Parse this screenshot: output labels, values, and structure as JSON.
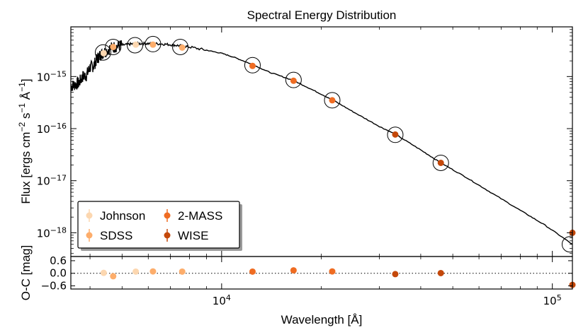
{
  "chart_data": [
    {
      "type": "scatter",
      "panel": "sed",
      "title": "Spectral Energy Distribution",
      "xlabel": "Wavelength [Å]",
      "ylabel_parts": [
        "Flux [ergs cm",
        "−2",
        " s",
        "−1",
        " Å",
        "−1",
        "]"
      ],
      "xscale": "log",
      "yscale": "log",
      "xlim": [
        3500,
        115000
      ],
      "ylim": [
        3.5e-19,
        9e-15
      ],
      "x_ticks": [
        {
          "value": 10000,
          "base": "10",
          "exp": "4"
        },
        {
          "value": 100000,
          "base": "10",
          "exp": "5"
        }
      ],
      "y_ticks": [
        {
          "value": 1e-15,
          "base": "10",
          "exp": "−15"
        },
        {
          "value": 1e-16,
          "base": "10",
          "exp": "−16"
        },
        {
          "value": 1e-17,
          "base": "10",
          "exp": "−17"
        },
        {
          "value": 1e-18,
          "base": "10",
          "exp": "−18"
        }
      ],
      "series": [
        {
          "name": "Johnson",
          "color": "#fcd7b0",
          "points": [
            [
              4400,
              2.8e-15
            ],
            [
              5500,
              4.1e-15
            ]
          ]
        },
        {
          "name": "SDSS",
          "color": "#fdad6b",
          "points": [
            [
              4700,
              3.7e-15
            ],
            [
              6200,
              4.1e-15
            ],
            [
              7600,
              3.6e-15
            ]
          ]
        },
        {
          "name": "2-MASS",
          "color": "#ef6c22",
          "points": [
            [
              12400,
              1.6e-15
            ],
            [
              16500,
              8.3e-16
            ],
            [
              21600,
              3.5e-16
            ]
          ]
        },
        {
          "name": "WISE",
          "color": "#c4480a",
          "points": [
            [
              33500,
              7.7e-17
            ],
            [
              46000,
              2.2e-17
            ],
            [
              115000,
              1e-18
            ]
          ]
        }
      ],
      "model_points": [
        [
          4380,
          2.9e-15
        ],
        [
          4700,
          3.7e-15
        ],
        [
          5470,
          4e-15
        ],
        [
          6200,
          4.2e-15
        ],
        [
          7500,
          3.7e-15
        ],
        [
          12400,
          1.65e-15
        ],
        [
          16500,
          8.6e-16
        ],
        [
          21600,
          3.5e-16
        ],
        [
          33500,
          7.6e-17
        ],
        [
          46000,
          2.2e-17
        ],
        [
          113000,
          6e-19
        ]
      ],
      "model_curve": [
        [
          3500,
          6.5e-16
        ],
        [
          3600,
          7e-16
        ],
        [
          3700,
          7.5e-16
        ],
        [
          3800,
          1e-15
        ],
        [
          3900,
          1.05e-15
        ],
        [
          4000,
          1.5e-15
        ],
        [
          4100,
          1.6e-15
        ],
        [
          4200,
          2.2e-15
        ],
        [
          4300,
          2.6e-15
        ],
        [
          4400,
          2.9e-15
        ],
        [
          4600,
          3.5e-15
        ],
        [
          4800,
          3.8e-15
        ],
        [
          5000,
          4e-15
        ],
        [
          5300,
          4.2e-15
        ],
        [
          5600,
          4.3e-15
        ],
        [
          6000,
          4.3e-15
        ],
        [
          6500,
          4.25e-15
        ],
        [
          7000,
          4.1e-15
        ],
        [
          7500,
          3.9e-15
        ],
        [
          8000,
          3.7e-15
        ],
        [
          9000,
          3.2e-15
        ],
        [
          10000,
          2.8e-15
        ],
        [
          11000,
          2.3e-15
        ],
        [
          12400,
          1.7e-15
        ],
        [
          14000,
          1.2e-15
        ],
        [
          16500,
          8.4e-16
        ],
        [
          19000,
          5.4e-16
        ],
        [
          21600,
          3.6e-16
        ],
        [
          25000,
          2.1e-16
        ],
        [
          30000,
          1.1e-16
        ],
        [
          33500,
          7.8e-17
        ],
        [
          40000,
          3.9e-17
        ],
        [
          46000,
          2.2e-17
        ],
        [
          55000,
          1.15e-17
        ],
        [
          65000,
          6e-18
        ],
        [
          80000,
          2.7e-18
        ],
        [
          95000,
          1.4e-18
        ],
        [
          115000,
          6e-19
        ]
      ],
      "legend": {
        "position": "lower-left",
        "entries": [
          "Johnson",
          "SDSS",
          "2-MASS",
          "WISE"
        ]
      }
    },
    {
      "type": "scatter",
      "panel": "residual",
      "ylabel": "O-C [mag]",
      "xlim": [
        3500,
        115000
      ],
      "ylim": [
        -0.75,
        0.8
      ],
      "y_ticks": [
        0.6,
        0.0,
        -0.6
      ],
      "y_tick_labels": [
        "0.6",
        "0.0",
        "−0.6"
      ],
      "zero_line": true,
      "series": [
        {
          "name": "Johnson",
          "color": "#fcd7b0",
          "points": [
            [
              4400,
              0.02
            ],
            [
              5500,
              0.08
            ]
          ]
        },
        {
          "name": "SDSS",
          "color": "#fdad6b",
          "points": [
            [
              4700,
              -0.14
            ],
            [
              6200,
              0.09
            ],
            [
              7600,
              0.08
            ]
          ]
        },
        {
          "name": "2-MASS",
          "color": "#ef6c22",
          "points": [
            [
              12400,
              0.08
            ],
            [
              16500,
              0.14
            ],
            [
              21600,
              0.09
            ]
          ]
        },
        {
          "name": "WISE",
          "color": "#c4480a",
          "points": [
            [
              33500,
              -0.04
            ],
            [
              46000,
              0.01
            ],
            [
              115000,
              -0.55
            ]
          ]
        }
      ]
    }
  ]
}
